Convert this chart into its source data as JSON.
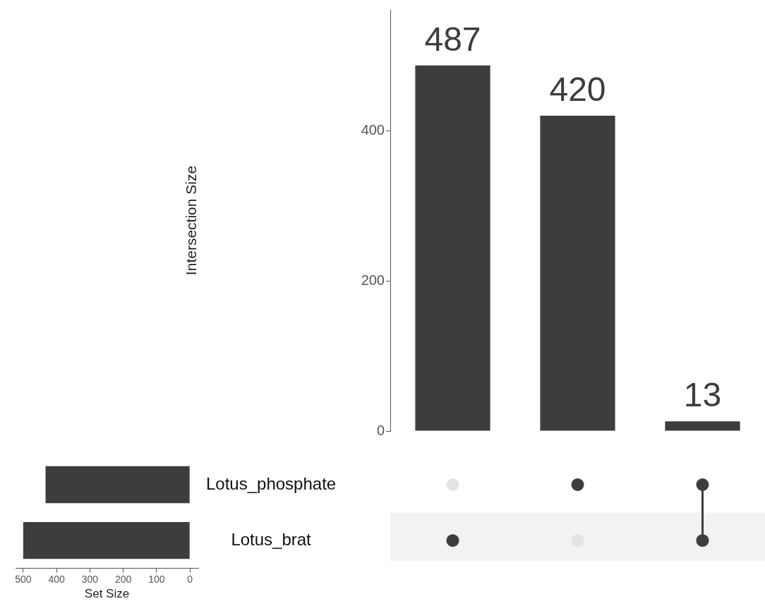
{
  "chart_data": [
    {
      "type": "bar",
      "categories": [
        null,
        null,
        null
      ],
      "values": [
        487,
        420,
        13
      ],
      "color": "#3d3d3d",
      "ylabel": "Intersection Size",
      "ylim": [
        0,
        561
      ],
      "yticks": [
        0,
        200,
        400
      ],
      "data_labels": true,
      "grid": false,
      "legend": false,
      "tick_labels": "y"
    },
    {
      "type": "bar",
      "orientation": "horizontal",
      "categories": [
        "Lotus_phosphate",
        "Lotus_brat"
      ],
      "values": [
        433,
        500
      ],
      "color": "#3d3d3d",
      "xlabel": "Set Size",
      "xlim": [
        523,
        -25
      ],
      "xticks": [
        500,
        400,
        300,
        200,
        100,
        0
      ],
      "grid": false,
      "legend": false
    }
  ]
}
